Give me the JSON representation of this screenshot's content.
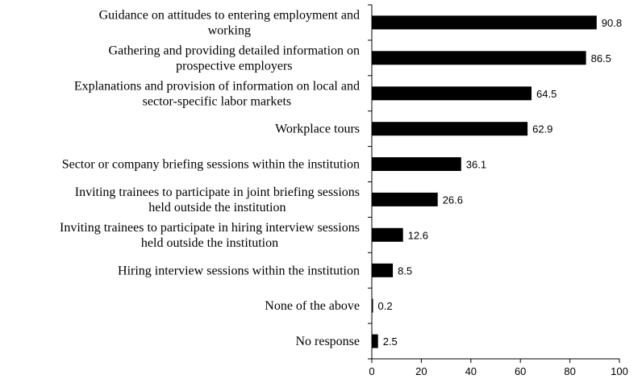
{
  "chart_data": {
    "type": "bar",
    "orientation": "horizontal",
    "title": "",
    "xlabel": "",
    "ylabel": "",
    "categories": [
      [
        "Guidance on attitudes to entering employment and",
        "working"
      ],
      [
        "Gathering and providing detailed information on",
        "prospective employers"
      ],
      [
        "Explanations and provision of information on local and",
        "sector-specific labor markets"
      ],
      [
        "Workplace tours"
      ],
      [
        "Sector or company briefing sessions within the institution"
      ],
      [
        "Inviting trainees to participate in joint briefing sessions",
        "held outside the institution"
      ],
      [
        "Inviting trainees to participate in hiring interview sessions",
        "held outside the institution"
      ],
      [
        "Hiring interview sessions within the institution"
      ],
      [
        "None of the above"
      ],
      [
        "No response"
      ]
    ],
    "values": [
      90.8,
      86.5,
      64.5,
      62.9,
      36.1,
      26.6,
      12.6,
      8.5,
      0.2,
      2.5
    ],
    "value_labels": [
      "90.8",
      "86.5",
      "64.5",
      "62.9",
      "36.1",
      "26.6",
      "12.6",
      "8.5",
      "0.2",
      "2.5"
    ],
    "xlim": [
      0,
      100
    ],
    "xticks": [
      0,
      20,
      40,
      60,
      80,
      100
    ],
    "xtick_labels": [
      "0",
      "20",
      "40",
      "60",
      "80",
      "100"
    ],
    "bar_color": "#000000",
    "grid": false,
    "legend": "none"
  }
}
